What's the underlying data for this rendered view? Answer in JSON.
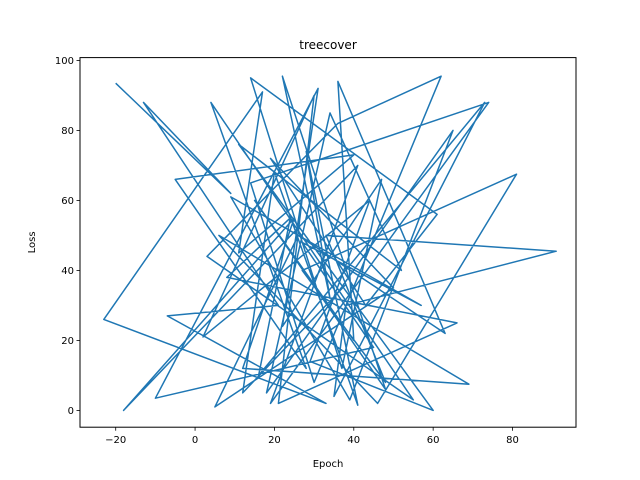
{
  "chart_data": {
    "type": "line",
    "title": "treecover",
    "xlabel": "Epoch",
    "ylabel": "Loss",
    "xlim": [
      -29,
      96
    ],
    "ylim": [
      -4.8,
      100.8
    ],
    "xticks": [
      -20,
      0,
      20,
      40,
      60,
      80
    ],
    "yticks": [
      0,
      20,
      40,
      60,
      80,
      100
    ],
    "grid": false,
    "legend": "none",
    "series": [
      {
        "color": "#1f77b4",
        "points_note": "dense random-walk path; representative sample of visible extreme excursions and core band",
        "x": [
          -20,
          9,
          -13,
          21,
          -7,
          33,
          -23,
          17,
          11,
          40,
          -5,
          28,
          4,
          55,
          3,
          36,
          62,
          30,
          14,
          74,
          19,
          41,
          -18,
          25,
          12,
          69,
          6,
          46,
          81,
          27,
          48,
          33,
          91,
          38,
          35,
          73,
          16,
          24,
          8,
          66,
          21,
          30,
          2,
          44,
          29,
          60,
          11,
          52,
          34,
          18,
          65,
          39,
          9,
          57,
          27,
          45,
          -10,
          31,
          22,
          47,
          37,
          14,
          61,
          43,
          19,
          50,
          5,
          26,
          63,
          36,
          40,
          15,
          48,
          22,
          34,
          28,
          41,
          20,
          12,
          38
        ],
        "y": [
          93.5,
          62,
          88,
          30,
          27,
          2,
          26,
          91,
          45,
          73,
          66,
          12,
          88,
          3,
          44,
          82,
          95.5,
          8,
          65,
          88,
          2,
          70,
          0,
          55,
          12,
          7.5,
          50,
          2,
          67.5,
          40,
          8,
          50,
          45.5,
          30,
          4,
          88,
          10,
          55,
          38,
          25,
          2,
          90,
          21,
          60,
          14,
          0,
          76,
          40,
          85,
          5,
          80,
          3,
          61,
          30,
          48,
          18,
          3.5,
          92,
          24,
          66,
          12,
          95,
          56,
          30,
          72,
          35,
          1,
          50,
          22,
          94,
          20,
          60,
          6,
          95.5,
          32,
          74,
          1.5,
          68,
          5,
          36
        ]
      }
    ]
  }
}
